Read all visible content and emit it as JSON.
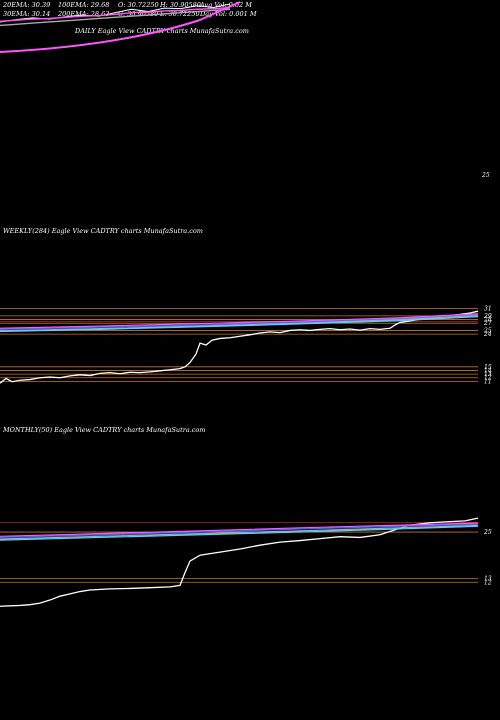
{
  "header": {
    "row1": [
      "20EMA: 30.39",
      "100EMA: 29.68",
      "O: 30.72250",
      "H: 30.90580",
      "Avg Vol: 0.02  M"
    ],
    "row2": [
      "30EMA: 30.14",
      "200EMA: 28.63",
      "C: 30.90580",
      "L: 30.72250",
      "Day Vol: 0.001 M"
    ]
  },
  "colors": {
    "price": "#ffffff",
    "ema_blue": "#3a6cff",
    "ema_pink": "#ff55ff",
    "ema_grey": "#aaaaaa",
    "ema_cyan": "#4fd3ff",
    "level_orange": "#c8742a",
    "level_red": "#ff3333"
  },
  "chart_data": [
    {
      "type": "line",
      "title": "",
      "panel": "daily",
      "watermark": "DAILY Eagle  View  CADTRY charts MunafaSutra.com",
      "y_ticks": [
        {
          "value": 25,
          "label": "25"
        }
      ],
      "ylim": [
        24,
        33
      ],
      "series": [
        {
          "role": "price",
          "values": [
            29.2,
            29.6,
            29.9,
            29.7,
            30.1,
            30.4,
            30.2,
            30.8,
            31.4,
            31.0,
            31.6,
            31.5,
            32.0,
            31.7,
            32.3
          ]
        },
        {
          "role": "ema",
          "values": [
            29.3,
            29.5,
            29.7,
            29.8,
            30.0,
            30.2,
            30.3,
            30.5,
            30.8,
            30.9,
            31.1,
            31.2,
            31.4,
            31.5,
            31.7
          ]
        },
        {
          "role": "ema",
          "values": [
            28.6,
            28.8,
            29.0,
            29.2,
            29.4,
            29.6,
            29.8,
            30.0,
            30.2,
            30.4,
            30.6,
            30.8,
            31.0,
            31.2,
            31.4
          ]
        }
      ]
    },
    {
      "type": "line",
      "title": "WEEKLY(284) Eagle  View  CADTRY charts MunafaSutra.com",
      "panel": "weekly",
      "y_ticks": [
        {
          "value": 31,
          "label": "31"
        },
        {
          "value": 29,
          "label": "29"
        },
        {
          "value": 28,
          "label": "28"
        },
        {
          "value": 27,
          "label": "27"
        },
        {
          "value": 25,
          "label": "25"
        },
        {
          "value": 24,
          "label": "24"
        },
        {
          "value": 15,
          "label": "15"
        },
        {
          "value": 14,
          "label": "14"
        },
        {
          "value": 13,
          "label": "13"
        },
        {
          "value": 12,
          "label": "12"
        },
        {
          "value": 11,
          "label": "11"
        }
      ],
      "series": [
        {
          "role": "price",
          "points": [
            [
              0,
              10.5
            ],
            [
              6,
              11.8
            ],
            [
              12,
              10.9
            ],
            [
              20,
              11.3
            ],
            [
              30,
              11.5
            ],
            [
              40,
              12.0
            ],
            [
              50,
              12.2
            ],
            [
              60,
              12.0
            ],
            [
              70,
              12.5
            ],
            [
              80,
              12.8
            ],
            [
              90,
              12.6
            ],
            [
              100,
              13.2
            ],
            [
              110,
              13.4
            ],
            [
              120,
              13.1
            ],
            [
              130,
              13.5
            ],
            [
              140,
              13.4
            ],
            [
              150,
              13.6
            ],
            [
              160,
              13.9
            ],
            [
              170,
              14.2
            ],
            [
              180,
              14.5
            ],
            [
              185,
              15.0
            ],
            [
              190,
              16.2
            ],
            [
              196,
              18.5
            ],
            [
              200,
              21.5
            ],
            [
              206,
              21.0
            ],
            [
              212,
              22.3
            ],
            [
              220,
              22.8
            ],
            [
              230,
              23.0
            ],
            [
              240,
              23.4
            ],
            [
              250,
              23.8
            ],
            [
              260,
              24.3
            ],
            [
              270,
              24.6
            ],
            [
              280,
              24.4
            ],
            [
              290,
              25.0
            ],
            [
              300,
              25.2
            ],
            [
              310,
              25.0
            ],
            [
              320,
              25.3
            ],
            [
              330,
              25.5
            ],
            [
              340,
              25.2
            ],
            [
              350,
              25.4
            ],
            [
              360,
              25.1
            ],
            [
              370,
              25.5
            ],
            [
              380,
              25.3
            ],
            [
              390,
              25.6
            ],
            [
              395,
              26.5
            ],
            [
              400,
              27.2
            ],
            [
              410,
              27.6
            ],
            [
              420,
              28.1
            ],
            [
              430,
              28.4
            ],
            [
              440,
              28.9
            ],
            [
              450,
              29.1
            ],
            [
              460,
              29.4
            ],
            [
              470,
              29.8
            ],
            [
              478,
              30.3
            ]
          ]
        },
        {
          "role": "ema",
          "points": [
            [
              0,
              25.3
            ],
            [
              100,
              25.9
            ],
            [
              200,
              26.5
            ],
            [
              300,
              27.3
            ],
            [
              400,
              28.2
            ],
            [
              478,
              29.4
            ]
          ]
        },
        {
          "role": "ema",
          "points": [
            [
              0,
              25.6
            ],
            [
              100,
              26.2
            ],
            [
              200,
              26.9
            ],
            [
              300,
              27.6
            ],
            [
              400,
              28.5
            ],
            [
              478,
              29.6
            ]
          ]
        },
        {
          "role": "ema",
          "points": [
            [
              0,
              24.9
            ],
            [
              100,
              25.5
            ],
            [
              200,
              26.2
            ],
            [
              300,
              27.0
            ],
            [
              400,
              28.0
            ],
            [
              478,
              29.1
            ]
          ]
        },
        {
          "role": "ema",
          "points": [
            [
              0,
              24.7
            ],
            [
              100,
              25.3
            ],
            [
              200,
              26.0
            ],
            [
              300,
              26.8
            ],
            [
              400,
              27.7
            ],
            [
              478,
              28.8
            ]
          ]
        }
      ]
    },
    {
      "type": "line",
      "title": "MONTHLY(50) Eagle  View  CADTRY charts MunafaSutra.com",
      "panel": "monthly",
      "y_ticks": [
        {
          "value": 25,
          "label": "25"
        },
        {
          "value": 13,
          "label": "13"
        },
        {
          "value": 12,
          "label": "12"
        }
      ],
      "series": [
        {
          "role": "price",
          "points": [
            [
              0,
              5.8
            ],
            [
              20,
              6.0
            ],
            [
              30,
              6.2
            ],
            [
              40,
              6.6
            ],
            [
              50,
              7.4
            ],
            [
              60,
              8.4
            ],
            [
              70,
              9.0
            ],
            [
              80,
              9.6
            ],
            [
              90,
              10.0
            ],
            [
              110,
              10.3
            ],
            [
              130,
              10.4
            ],
            [
              150,
              10.6
            ],
            [
              170,
              10.8
            ],
            [
              180,
              11.2
            ],
            [
              185,
              14.5
            ],
            [
              190,
              17.5
            ],
            [
              200,
              19.0
            ],
            [
              220,
              19.8
            ],
            [
              240,
              20.6
            ],
            [
              260,
              21.6
            ],
            [
              280,
              22.4
            ],
            [
              300,
              22.8
            ],
            [
              320,
              23.3
            ],
            [
              340,
              23.8
            ],
            [
              360,
              23.6
            ],
            [
              380,
              24.3
            ],
            [
              395,
              25.6
            ],
            [
              410,
              26.8
            ],
            [
              430,
              27.4
            ],
            [
              450,
              27.7
            ],
            [
              465,
              27.9
            ],
            [
              478,
              28.6
            ]
          ]
        },
        {
          "role": "ema",
          "points": [
            [
              0,
              23.6
            ],
            [
              100,
              24.3
            ],
            [
              200,
              25.0
            ],
            [
              300,
              25.8
            ],
            [
              400,
              26.5
            ],
            [
              478,
              27.0
            ]
          ]
        },
        {
          "role": "ema",
          "points": [
            [
              0,
              23.9
            ],
            [
              100,
              24.6
            ],
            [
              200,
              25.3
            ],
            [
              300,
              26.1
            ],
            [
              400,
              26.8
            ],
            [
              478,
              27.3
            ]
          ]
        },
        {
          "role": "ema",
          "points": [
            [
              0,
              23.2
            ],
            [
              100,
              23.9
            ],
            [
              200,
              24.6
            ],
            [
              300,
              25.3
            ],
            [
              400,
              26.1
            ],
            [
              478,
              26.7
            ]
          ]
        },
        {
          "role": "ema",
          "points": [
            [
              0,
              22.9
            ],
            [
              100,
              23.6
            ],
            [
              200,
              24.3
            ],
            [
              300,
              25.0
            ],
            [
              400,
              25.8
            ],
            [
              478,
              26.5
            ]
          ]
        }
      ]
    }
  ]
}
